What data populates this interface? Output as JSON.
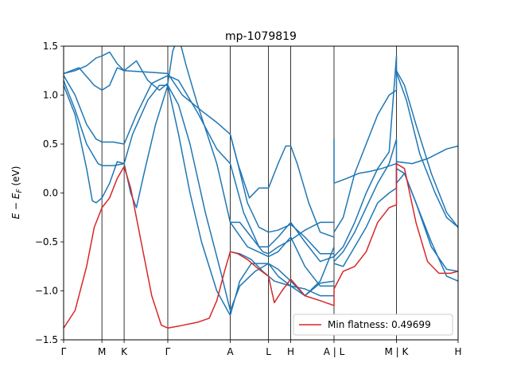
{
  "chart_data": {
    "type": "line",
    "title": "mp-1079819",
    "ylabel": "E − E_F (eV)",
    "ylabel_main": "E − E",
    "ylabel_sub": "F",
    "ylabel_unit": " (eV)",
    "xlim": [
      0,
      10.3
    ],
    "ylim": [
      -1.5,
      1.5
    ],
    "yticks": [
      -1.5,
      -1.0,
      -0.5,
      0.0,
      0.5,
      1.0,
      1.5
    ],
    "ytick_labels": [
      "−1.5",
      "−1.0",
      "−0.5",
      "0.0",
      "0.5",
      "1.0",
      "1.5"
    ],
    "xticks": [
      {
        "pos": 0,
        "label": "Γ"
      },
      {
        "pos": 1.0,
        "label": "M"
      },
      {
        "pos": 1.58,
        "label": "K"
      },
      {
        "pos": 2.72,
        "label": "Γ"
      },
      {
        "pos": 4.35,
        "label": "A"
      },
      {
        "pos": 5.35,
        "label": "L"
      },
      {
        "pos": 5.93,
        "label": "H"
      },
      {
        "pos": 7.06,
        "label": "A | L"
      },
      {
        "pos": 8.69,
        "label": "M | K"
      },
      {
        "pos": 10.3,
        "label": "H"
      }
    ],
    "legend": {
      "label": "Min flatness: 0.49699",
      "placement": "lower-right"
    },
    "colors": {
      "bands": "#1f77b4",
      "highlight": "#d62728"
    },
    "series": [
      {
        "kind": "band",
        "points": [
          [
            0,
            1.22
          ],
          [
            0.3,
            1.25
          ],
          [
            0.6,
            1.3
          ],
          [
            0.85,
            1.38
          ],
          [
            1.0,
            1.4
          ],
          [
            1.2,
            1.44
          ],
          [
            1.4,
            1.32
          ],
          [
            1.58,
            1.25
          ],
          [
            2.0,
            1.24
          ],
          [
            2.4,
            1.23
          ],
          [
            2.72,
            1.22
          ],
          [
            3.1,
            1.0
          ],
          [
            3.6,
            0.84
          ],
          [
            4.0,
            0.72
          ],
          [
            4.35,
            0.6
          ],
          [
            4.55,
            0.3
          ],
          [
            4.8,
            -0.1
          ],
          [
            5.1,
            -0.35
          ],
          [
            5.35,
            -0.4
          ],
          [
            5.6,
            -0.38
          ],
          [
            5.93,
            -0.32
          ],
          [
            6.3,
            -0.45
          ],
          [
            6.7,
            -0.62
          ],
          [
            7.06,
            -0.62
          ]
        ]
      },
      {
        "kind": "band",
        "points": [
          [
            0,
            1.22
          ],
          [
            0.4,
            1.28
          ],
          [
            0.8,
            1.1
          ],
          [
            1.0,
            1.05
          ],
          [
            1.2,
            1.1
          ],
          [
            1.4,
            1.28
          ],
          [
            1.58,
            1.25
          ],
          [
            1.9,
            1.35
          ],
          [
            2.2,
            1.15
          ],
          [
            2.5,
            1.05
          ],
          [
            2.72,
            1.12
          ],
          [
            2.85,
            1.45
          ],
          [
            3.0,
            1.6
          ],
          [
            3.2,
            1.3
          ],
          [
            3.5,
            0.9
          ],
          [
            4.0,
            0.3
          ],
          [
            4.35,
            -0.3
          ],
          [
            4.8,
            -0.55
          ],
          [
            5.35,
            -0.65
          ],
          [
            5.6,
            -0.6
          ],
          [
            5.93,
            -0.45
          ],
          [
            6.3,
            -0.75
          ],
          [
            6.7,
            -0.95
          ],
          [
            7.06,
            -0.95
          ]
        ]
      },
      {
        "kind": "band",
        "points": [
          [
            0,
            1.2
          ],
          [
            0.3,
            1.0
          ],
          [
            0.6,
            0.7
          ],
          [
            0.85,
            0.55
          ],
          [
            1.0,
            0.52
          ],
          [
            1.3,
            0.52
          ],
          [
            1.58,
            0.5
          ],
          [
            1.9,
            0.8
          ],
          [
            2.3,
            1.12
          ],
          [
            2.72,
            1.2
          ],
          [
            3.0,
            1.15
          ],
          [
            3.5,
            0.82
          ],
          [
            4.0,
            0.45
          ],
          [
            4.35,
            0.3
          ],
          [
            4.7,
            -0.2
          ],
          [
            5.1,
            -0.55
          ],
          [
            5.35,
            -0.55
          ],
          [
            5.6,
            -0.45
          ],
          [
            5.93,
            -0.3
          ],
          [
            6.3,
            -0.5
          ],
          [
            6.7,
            -0.7
          ],
          [
            7.06,
            -0.65
          ]
        ]
      },
      {
        "kind": "band",
        "points": [
          [
            0,
            1.15
          ],
          [
            0.3,
            0.85
          ],
          [
            0.6,
            0.5
          ],
          [
            0.9,
            0.3
          ],
          [
            1.0,
            0.28
          ],
          [
            1.3,
            0.28
          ],
          [
            1.58,
            0.3
          ],
          [
            1.8,
            0.6
          ],
          [
            2.2,
            0.95
          ],
          [
            2.5,
            1.1
          ],
          [
            2.72,
            1.1
          ],
          [
            3.0,
            0.9
          ],
          [
            3.3,
            0.5
          ],
          [
            3.7,
            -0.2
          ],
          [
            4.1,
            -0.8
          ],
          [
            4.35,
            -1.2
          ],
          [
            4.6,
            -0.95
          ],
          [
            5.0,
            -0.8
          ],
          [
            5.35,
            -0.72
          ],
          [
            5.6,
            -0.78
          ],
          [
            5.93,
            -0.9
          ],
          [
            6.3,
            -1.05
          ],
          [
            6.7,
            -0.92
          ],
          [
            7.06,
            -0.9
          ]
        ]
      },
      {
        "kind": "band",
        "points": [
          [
            0,
            1.1
          ],
          [
            0.3,
            0.8
          ],
          [
            0.6,
            0.25
          ],
          [
            0.75,
            -0.08
          ],
          [
            0.85,
            -0.1
          ],
          [
            1.0,
            -0.05
          ],
          [
            1.2,
            0.1
          ],
          [
            1.4,
            0.32
          ],
          [
            1.58,
            0.3
          ],
          [
            1.75,
            0.0
          ],
          [
            1.9,
            -0.15
          ],
          [
            2.1,
            0.2
          ],
          [
            2.4,
            0.7
          ],
          [
            2.72,
            1.1
          ],
          [
            3.0,
            0.6
          ],
          [
            3.3,
            0.0
          ],
          [
            3.6,
            -0.5
          ],
          [
            4.0,
            -1.0
          ],
          [
            4.35,
            -1.25
          ],
          [
            4.6,
            -0.9
          ],
          [
            4.9,
            -0.72
          ],
          [
            5.35,
            -0.72
          ],
          [
            5.6,
            -0.85
          ],
          [
            5.93,
            -0.95
          ],
          [
            6.3,
            -1.05
          ],
          [
            6.7,
            -0.9
          ],
          [
            7.06,
            -0.55
          ]
        ]
      },
      {
        "kind": "band",
        "points": [
          [
            4.35,
            0.6
          ],
          [
            4.55,
            0.3
          ],
          [
            4.85,
            -0.05
          ],
          [
            5.1,
            0.05
          ],
          [
            5.35,
            0.05
          ],
          [
            5.6,
            0.3
          ],
          [
            5.8,
            0.48
          ],
          [
            5.93,
            0.48
          ],
          [
            6.1,
            0.3
          ],
          [
            6.4,
            -0.1
          ],
          [
            6.7,
            -0.4
          ],
          [
            7.06,
            -0.45
          ]
        ]
      },
      {
        "kind": "band",
        "points": [
          [
            4.35,
            -0.3
          ],
          [
            4.6,
            -0.3
          ],
          [
            4.9,
            -0.45
          ],
          [
            5.2,
            -0.6
          ],
          [
            5.35,
            -0.62
          ],
          [
            5.6,
            -0.55
          ],
          [
            5.93,
            -0.48
          ],
          [
            6.3,
            -0.38
          ],
          [
            6.7,
            -0.3
          ],
          [
            7.06,
            -0.3
          ]
        ]
      },
      {
        "kind": "band",
        "points": [
          [
            4.35,
            -0.6
          ],
          [
            4.6,
            -0.62
          ],
          [
            4.9,
            -0.68
          ],
          [
            5.2,
            -0.8
          ],
          [
            5.5,
            -0.9
          ],
          [
            5.93,
            -0.95
          ],
          [
            6.3,
            -0.98
          ],
          [
            6.7,
            -1.05
          ],
          [
            7.06,
            -1.05
          ]
        ]
      },
      {
        "kind": "band",
        "points": [
          [
            7.06,
            0.55
          ],
          [
            7.06,
            0.1
          ],
          [
            7.4,
            0.15
          ],
          [
            7.7,
            0.2
          ],
          [
            8.0,
            0.22
          ],
          [
            8.3,
            0.25
          ],
          [
            8.69,
            0.3
          ],
          [
            8.69,
            0.32
          ],
          [
            9.1,
            0.3
          ],
          [
            9.5,
            0.35
          ],
          [
            10.0,
            0.45
          ],
          [
            10.3,
            0.48
          ]
        ]
      },
      {
        "kind": "band",
        "points": [
          [
            7.06,
            -0.4
          ],
          [
            7.3,
            -0.25
          ],
          [
            7.6,
            0.2
          ],
          [
            7.9,
            0.5
          ],
          [
            8.2,
            0.8
          ],
          [
            8.5,
            1.0
          ],
          [
            8.69,
            1.05
          ],
          [
            8.69,
            1.25
          ],
          [
            8.9,
            1.1
          ],
          [
            9.2,
            0.7
          ],
          [
            9.6,
            0.2
          ],
          [
            10.0,
            -0.2
          ],
          [
            10.3,
            -0.35
          ]
        ]
      },
      {
        "kind": "band",
        "points": [
          [
            7.06,
            -0.65
          ],
          [
            7.3,
            -0.55
          ],
          [
            7.6,
            -0.3
          ],
          [
            7.9,
            0.0
          ],
          [
            8.2,
            0.25
          ],
          [
            8.5,
            0.42
          ],
          [
            8.69,
            1.4
          ],
          [
            8.69,
            1.23
          ],
          [
            8.95,
            0.95
          ],
          [
            9.3,
            0.4
          ],
          [
            9.7,
            0.0
          ],
          [
            10.0,
            -0.25
          ],
          [
            10.3,
            -0.35
          ]
        ]
      },
      {
        "kind": "band",
        "points": [
          [
            7.06,
            -0.7
          ],
          [
            7.3,
            -0.6
          ],
          [
            7.6,
            -0.4
          ],
          [
            7.9,
            -0.15
          ],
          [
            8.2,
            0.1
          ],
          [
            8.5,
            0.3
          ],
          [
            8.69,
            0.55
          ],
          [
            8.69,
            0.1
          ],
          [
            8.9,
            0.2
          ],
          [
            9.2,
            -0.1
          ],
          [
            9.6,
            -0.55
          ],
          [
            10.0,
            -0.78
          ],
          [
            10.3,
            -0.8
          ]
        ]
      },
      {
        "kind": "band",
        "points": [
          [
            7.06,
            -0.72
          ],
          [
            7.3,
            -0.75
          ],
          [
            7.6,
            -0.55
          ],
          [
            7.9,
            -0.35
          ],
          [
            8.2,
            -0.1
          ],
          [
            8.5,
            0.0
          ],
          [
            8.69,
            0.05
          ],
          [
            8.69,
            0.25
          ],
          [
            8.9,
            0.2
          ],
          [
            9.2,
            -0.1
          ],
          [
            9.6,
            -0.5
          ],
          [
            10.0,
            -0.85
          ],
          [
            10.3,
            -0.9
          ]
        ]
      },
      {
        "kind": "highlight",
        "name": "Min flatness: 0.49699",
        "points": [
          [
            0,
            -1.38
          ],
          [
            0.3,
            -1.2
          ],
          [
            0.6,
            -0.75
          ],
          [
            0.8,
            -0.35
          ],
          [
            1.0,
            -0.15
          ],
          [
            1.2,
            -0.05
          ],
          [
            1.4,
            0.15
          ],
          [
            1.58,
            0.27
          ],
          [
            1.75,
            0.05
          ],
          [
            2.0,
            -0.45
          ],
          [
            2.3,
            -1.05
          ],
          [
            2.55,
            -1.35
          ],
          [
            2.72,
            -1.38
          ],
          [
            3.0,
            -1.36
          ],
          [
            3.5,
            -1.32
          ],
          [
            3.8,
            -1.28
          ],
          [
            4.0,
            -1.1
          ],
          [
            4.2,
            -0.8
          ],
          [
            4.35,
            -0.6
          ],
          [
            4.55,
            -0.62
          ],
          [
            4.8,
            -0.68
          ],
          [
            5.1,
            -0.78
          ],
          [
            5.35,
            -0.85
          ],
          [
            5.5,
            -1.12
          ],
          [
            5.7,
            -1.0
          ],
          [
            5.93,
            -0.88
          ],
          [
            6.3,
            -1.05
          ],
          [
            6.7,
            -1.1
          ],
          [
            7.06,
            -1.15
          ],
          [
            7.06,
            -0.98
          ],
          [
            7.3,
            -0.8
          ],
          [
            7.6,
            -0.75
          ],
          [
            7.9,
            -0.6
          ],
          [
            8.2,
            -0.3
          ],
          [
            8.5,
            -0.15
          ],
          [
            8.69,
            -0.12
          ],
          [
            8.69,
            0.3
          ],
          [
            8.9,
            0.25
          ],
          [
            9.2,
            -0.3
          ],
          [
            9.5,
            -0.7
          ],
          [
            9.8,
            -0.82
          ],
          [
            10.1,
            -0.82
          ],
          [
            10.3,
            -0.8
          ]
        ]
      }
    ]
  }
}
